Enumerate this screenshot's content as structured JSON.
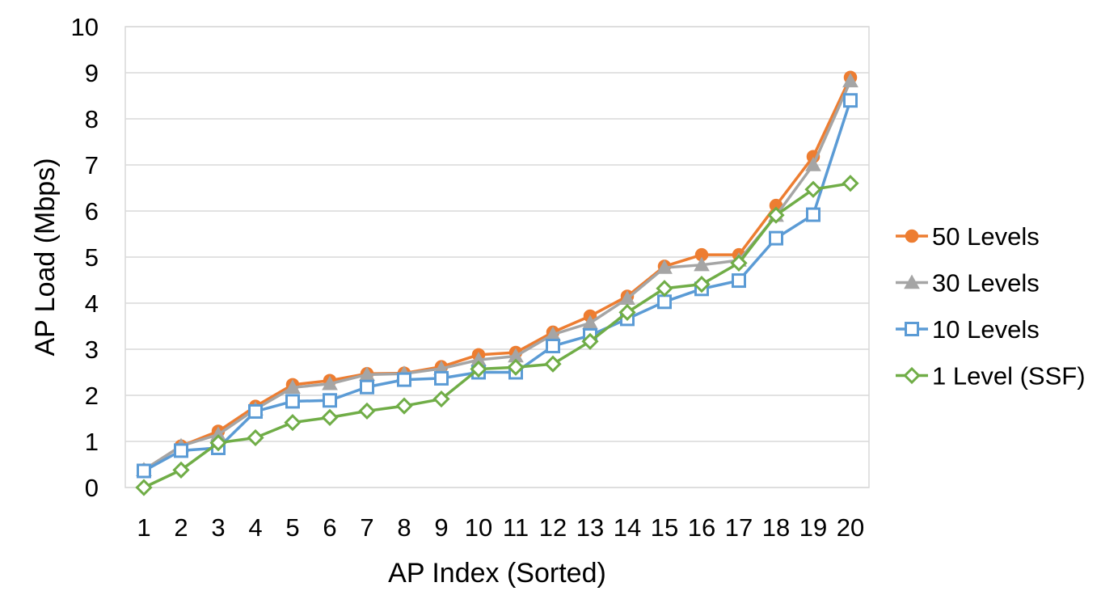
{
  "chart_data": {
    "type": "line",
    "xlabel": "AP Index (Sorted)",
    "ylabel": "AP Load (Mbps)",
    "categories": [
      "1",
      "2",
      "3",
      "4",
      "5",
      "6",
      "7",
      "8",
      "9",
      "10",
      "11",
      "12",
      "13",
      "14",
      "15",
      "16",
      "17",
      "18",
      "19",
      "20"
    ],
    "ylim": [
      0,
      10
    ],
    "yticks": [
      "0",
      "1",
      "2",
      "3",
      "4",
      "5",
      "6",
      "7",
      "8",
      "9",
      "10"
    ],
    "grid": true,
    "legend_position": "right",
    "series": [
      {
        "name": "50 Levels",
        "color": "#ED7D31",
        "marker": "filled-circle",
        "values": [
          0.38,
          0.9,
          1.22,
          1.76,
          2.23,
          2.32,
          2.47,
          2.48,
          2.62,
          2.88,
          2.93,
          3.37,
          3.72,
          4.15,
          4.8,
          5.05,
          5.05,
          6.12,
          7.18,
          8.9
        ]
      },
      {
        "name": "30 Levels",
        "color": "#A5A5A5",
        "marker": "filled-triangle",
        "values": [
          0.38,
          0.9,
          1.15,
          1.7,
          2.17,
          2.25,
          2.45,
          2.47,
          2.58,
          2.77,
          2.85,
          3.32,
          3.57,
          4.1,
          4.77,
          4.83,
          4.93,
          5.9,
          7.0,
          8.82
        ]
      },
      {
        "name": "10 Levels",
        "color": "#5B9BD5",
        "marker": "hollow-square",
        "values": [
          0.36,
          0.8,
          0.86,
          1.65,
          1.87,
          1.89,
          2.18,
          2.34,
          2.37,
          2.5,
          2.5,
          3.07,
          3.3,
          3.66,
          4.03,
          4.31,
          4.49,
          5.41,
          5.92,
          8.4
        ]
      },
      {
        "name": "1 Level (SSF)",
        "color": "#70AD47",
        "marker": "hollow-diamond",
        "values": [
          0.0,
          0.38,
          0.97,
          1.08,
          1.41,
          1.52,
          1.66,
          1.77,
          1.92,
          2.57,
          2.61,
          2.68,
          3.17,
          3.8,
          4.32,
          4.41,
          4.87,
          5.91,
          6.47,
          6.6
        ]
      }
    ]
  }
}
